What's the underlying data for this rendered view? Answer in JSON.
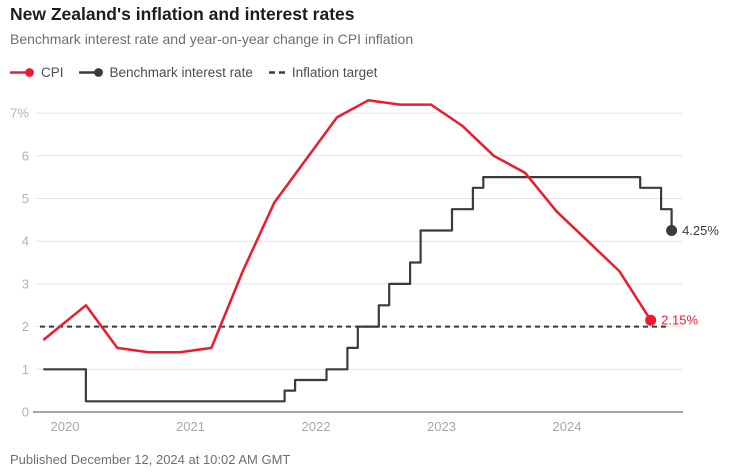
{
  "header": {
    "title": "New Zealand's inflation and interest rates",
    "subtitle": "Benchmark interest rate and year-on-year change in CPI inflation"
  },
  "legend": {
    "items": [
      {
        "label": "CPI",
        "color": "#ed1b2e",
        "marker": "line-dot"
      },
      {
        "label": "Benchmark interest rate",
        "color": "#3b3b3b",
        "marker": "line-dot"
      },
      {
        "label": "Inflation target",
        "color": "#3b3b3b",
        "marker": "dashed"
      }
    ]
  },
  "colors": {
    "cpi": "#ed1b2e",
    "benchmark": "#3b3b3b",
    "target": "#3a3a3a",
    "grid": "#e2e2e2",
    "axis": "#a6a6a6",
    "y_tick_label": "#b3b3b3",
    "x_tick_label": "#a8a8a8"
  },
  "chart_data": {
    "type": "line",
    "title": "New Zealand's inflation and interest rates",
    "xlabel": "",
    "ylabel": "",
    "x_ticks": [
      "2020",
      "2021",
      "2022",
      "2023",
      "2024"
    ],
    "y_ticks": [
      "0",
      "1",
      "2",
      "3",
      "4",
      "5",
      "6",
      "7%"
    ],
    "ylim": [
      0,
      7.6
    ],
    "grid": true,
    "legend_position": "top",
    "inflation_target_value": 2,
    "series": [
      {
        "name": "CPI",
        "type": "line",
        "color": "#ed1b2e",
        "end_label": "2.15%",
        "points": [
          [
            "Nov 2019",
            1.7
          ],
          [
            "Mar 2020",
            2.5
          ],
          [
            "Jun 2020",
            1.5
          ],
          [
            "Sep 2020",
            1.4
          ],
          [
            "Dec 2020",
            1.4
          ],
          [
            "Mar 2021",
            1.5
          ],
          [
            "Jun 2021",
            3.3
          ],
          [
            "Sep 2021",
            4.9
          ],
          [
            "Dec 2021",
            5.9
          ],
          [
            "Mar 2022",
            6.9
          ],
          [
            "Jun 2022",
            7.3
          ],
          [
            "Sep 2022",
            7.2
          ],
          [
            "Dec 2022",
            7.2
          ],
          [
            "Mar 2023",
            6.7
          ],
          [
            "Jun 2023",
            6.0
          ],
          [
            "Sep 2023",
            5.6
          ],
          [
            "Dec 2023",
            4.7
          ],
          [
            "Mar 2024",
            4.0
          ],
          [
            "Jun 2024",
            3.3
          ],
          [
            "Sep 2024",
            2.15
          ]
        ]
      },
      {
        "name": "Benchmark interest rate",
        "type": "step",
        "color": "#3b3b3b",
        "end_label": "4.25%",
        "points": [
          [
            "Nov 2019",
            1.0
          ],
          [
            "Mar 2020",
            0.25
          ],
          [
            "Oct 2021",
            0.5
          ],
          [
            "Nov 2021",
            0.75
          ],
          [
            "Feb 2022",
            1.0
          ],
          [
            "Apr 2022",
            1.5
          ],
          [
            "May 2022",
            2.0
          ],
          [
            "Jul 2022",
            2.5
          ],
          [
            "Aug 2022",
            3.0
          ],
          [
            "Oct 2022",
            3.5
          ],
          [
            "Nov 2022",
            4.25
          ],
          [
            "Feb 2023",
            4.75
          ],
          [
            "Apr 2023",
            5.25
          ],
          [
            "May 2023",
            5.5
          ],
          [
            "Aug 2024",
            5.25
          ],
          [
            "Oct 2024",
            4.75
          ],
          [
            "Nov 2024",
            4.25
          ]
        ]
      }
    ]
  },
  "footer": {
    "published": "Published December 12, 2024 at 10:02 AM GMT"
  }
}
